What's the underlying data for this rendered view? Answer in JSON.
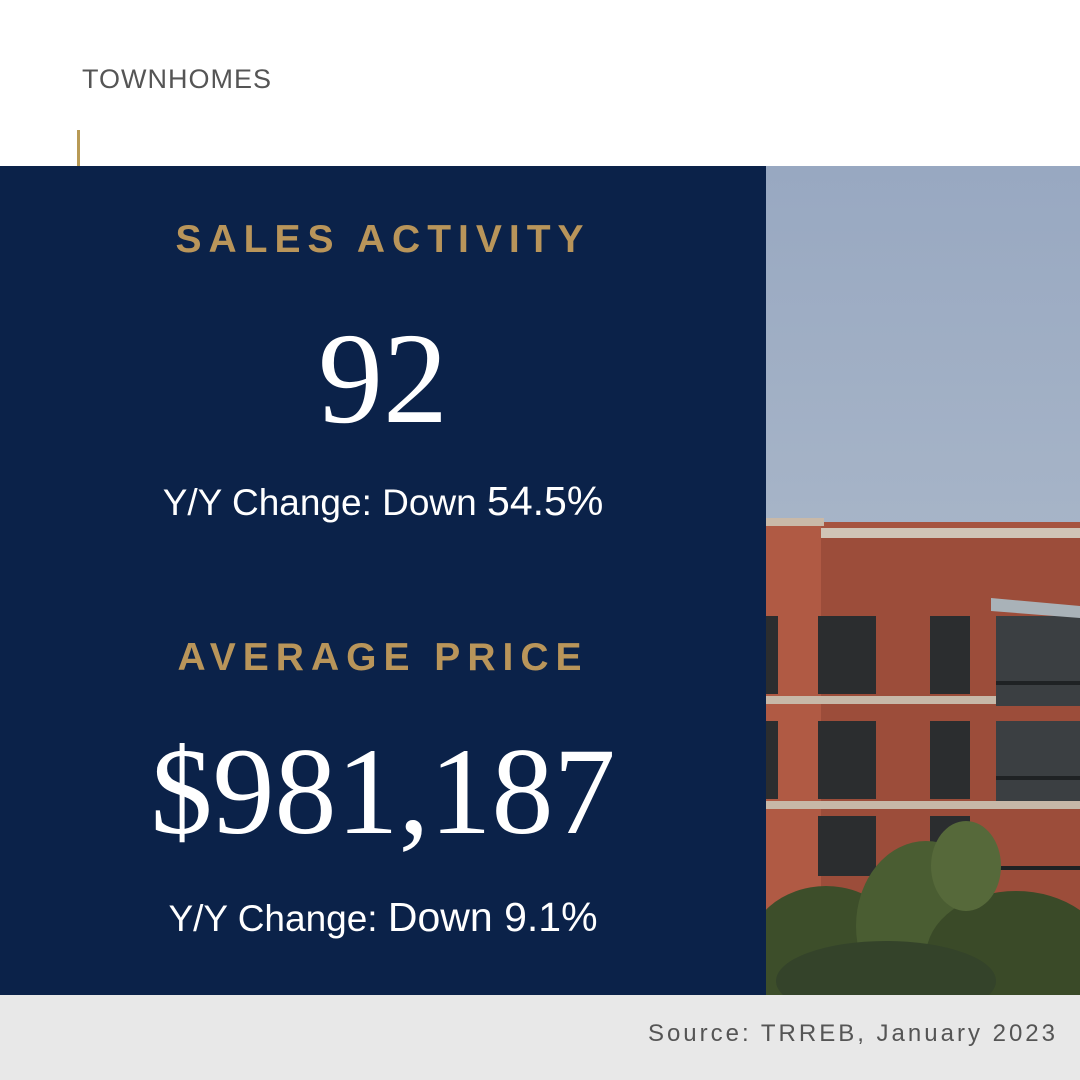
{
  "category_label": "TOWNHOMES",
  "sales": {
    "heading": "SALES ACTIVITY",
    "value": "92",
    "change_prefix": "Y/Y Change: Down",
    "change_value": "54.5%"
  },
  "price": {
    "heading": "AVERAGE PRICE",
    "value": "$981,187",
    "change_prefix": "Y/Y Change:",
    "change_value": "Down 9.1%"
  },
  "source": "Source: TRREB, January 2023",
  "colors": {
    "panel": "#0b2249",
    "gold": "#b9955a",
    "footer": "#e8e8e8",
    "brick": "#a65440"
  },
  "photo": {
    "subject": "brick-apartment-building-photo"
  }
}
